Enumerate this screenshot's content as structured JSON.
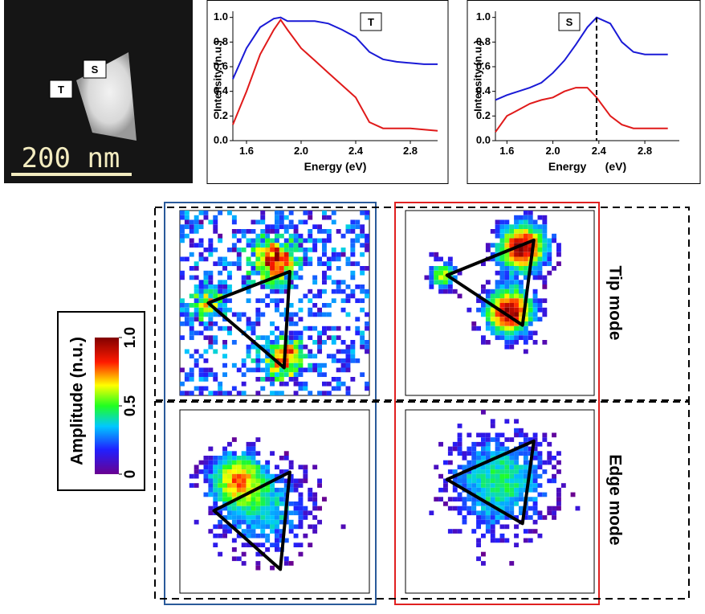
{
  "chart_data": [
    {
      "type": "line",
      "annotation": "T",
      "x_label": "Energy (eV)",
      "y_label": "Intensity (n.u.)",
      "x": [
        1.5,
        1.6,
        1.7,
        1.8,
        1.85,
        1.9,
        2.0,
        2.1,
        2.2,
        2.3,
        2.4,
        2.5,
        2.6,
        2.7,
        2.8,
        2.9,
        3.0
      ],
      "series": [
        {
          "color": "#1a1ad6",
          "values": [
            0.5,
            0.75,
            0.92,
            0.99,
            1.0,
            0.97,
            0.97,
            0.97,
            0.95,
            0.9,
            0.84,
            0.72,
            0.66,
            0.64,
            0.63,
            0.62,
            0.62
          ]
        },
        {
          "color": "#e01a1a",
          "values": [
            0.13,
            0.4,
            0.7,
            0.9,
            0.98,
            0.9,
            0.75,
            0.65,
            0.55,
            0.45,
            0.35,
            0.15,
            0.1,
            0.1,
            0.1,
            0.09,
            0.08
          ]
        }
      ],
      "xlim": [
        1.5,
        3.0
      ],
      "ylim": [
        0,
        1.05
      ],
      "xticks": [
        1.6,
        {
          "value": 2.0,
          "label": "2.0"
        },
        2.4,
        2.8
      ],
      "yticks": [
        {
          "value": 0,
          "label": "0.0"
        },
        0.2,
        0.4,
        0.6,
        0.8,
        {
          "value": 1,
          "label": "1.0"
        }
      ]
    },
    {
      "type": "line",
      "annotation": "S",
      "x_label": "Energy      (eV)",
      "y_label": "Intensity (n.u.)",
      "x": [
        1.5,
        1.6,
        1.7,
        1.8,
        1.9,
        2.0,
        2.1,
        2.2,
        2.3,
        2.38,
        2.5,
        2.6,
        2.7,
        2.8,
        2.9,
        3.0
      ],
      "series": [
        {
          "color": "#1a1ad6",
          "values": [
            0.33,
            0.37,
            0.4,
            0.43,
            0.47,
            0.55,
            0.65,
            0.78,
            0.92,
            1.0,
            0.95,
            0.8,
            0.72,
            0.7,
            0.7,
            0.7
          ]
        },
        {
          "color": "#e01a1a",
          "values": [
            0.07,
            0.2,
            0.25,
            0.3,
            0.33,
            0.35,
            0.4,
            0.43,
            0.43,
            0.35,
            0.2,
            0.13,
            0.1,
            0.1,
            0.1,
            0.1
          ]
        }
      ],
      "reference_x": 2.38,
      "xlim": [
        1.5,
        3.1
      ],
      "ylim": [
        0,
        1.05
      ],
      "xticks": [
        1.6,
        {
          "value": 2.0,
          "label": "2.0"
        },
        2.4,
        2.8
      ],
      "yticks": [
        {
          "value": 0,
          "label": "0.0"
        },
        0.2,
        0.4,
        0.6,
        0.8,
        {
          "value": 1,
          "label": "1.0"
        }
      ]
    }
  ],
  "image": {
    "scale_label": "200 nm",
    "markers": [
      "S",
      "T"
    ]
  },
  "maps": {
    "row_labels": [
      "Tip mode",
      "Edge mode"
    ]
  },
  "colorbar": {
    "label": "Amplitude (n.u.)",
    "ticks": [
      0,
      0.5,
      {
        "value": 1,
        "label": "1.0"
      }
    ]
  }
}
